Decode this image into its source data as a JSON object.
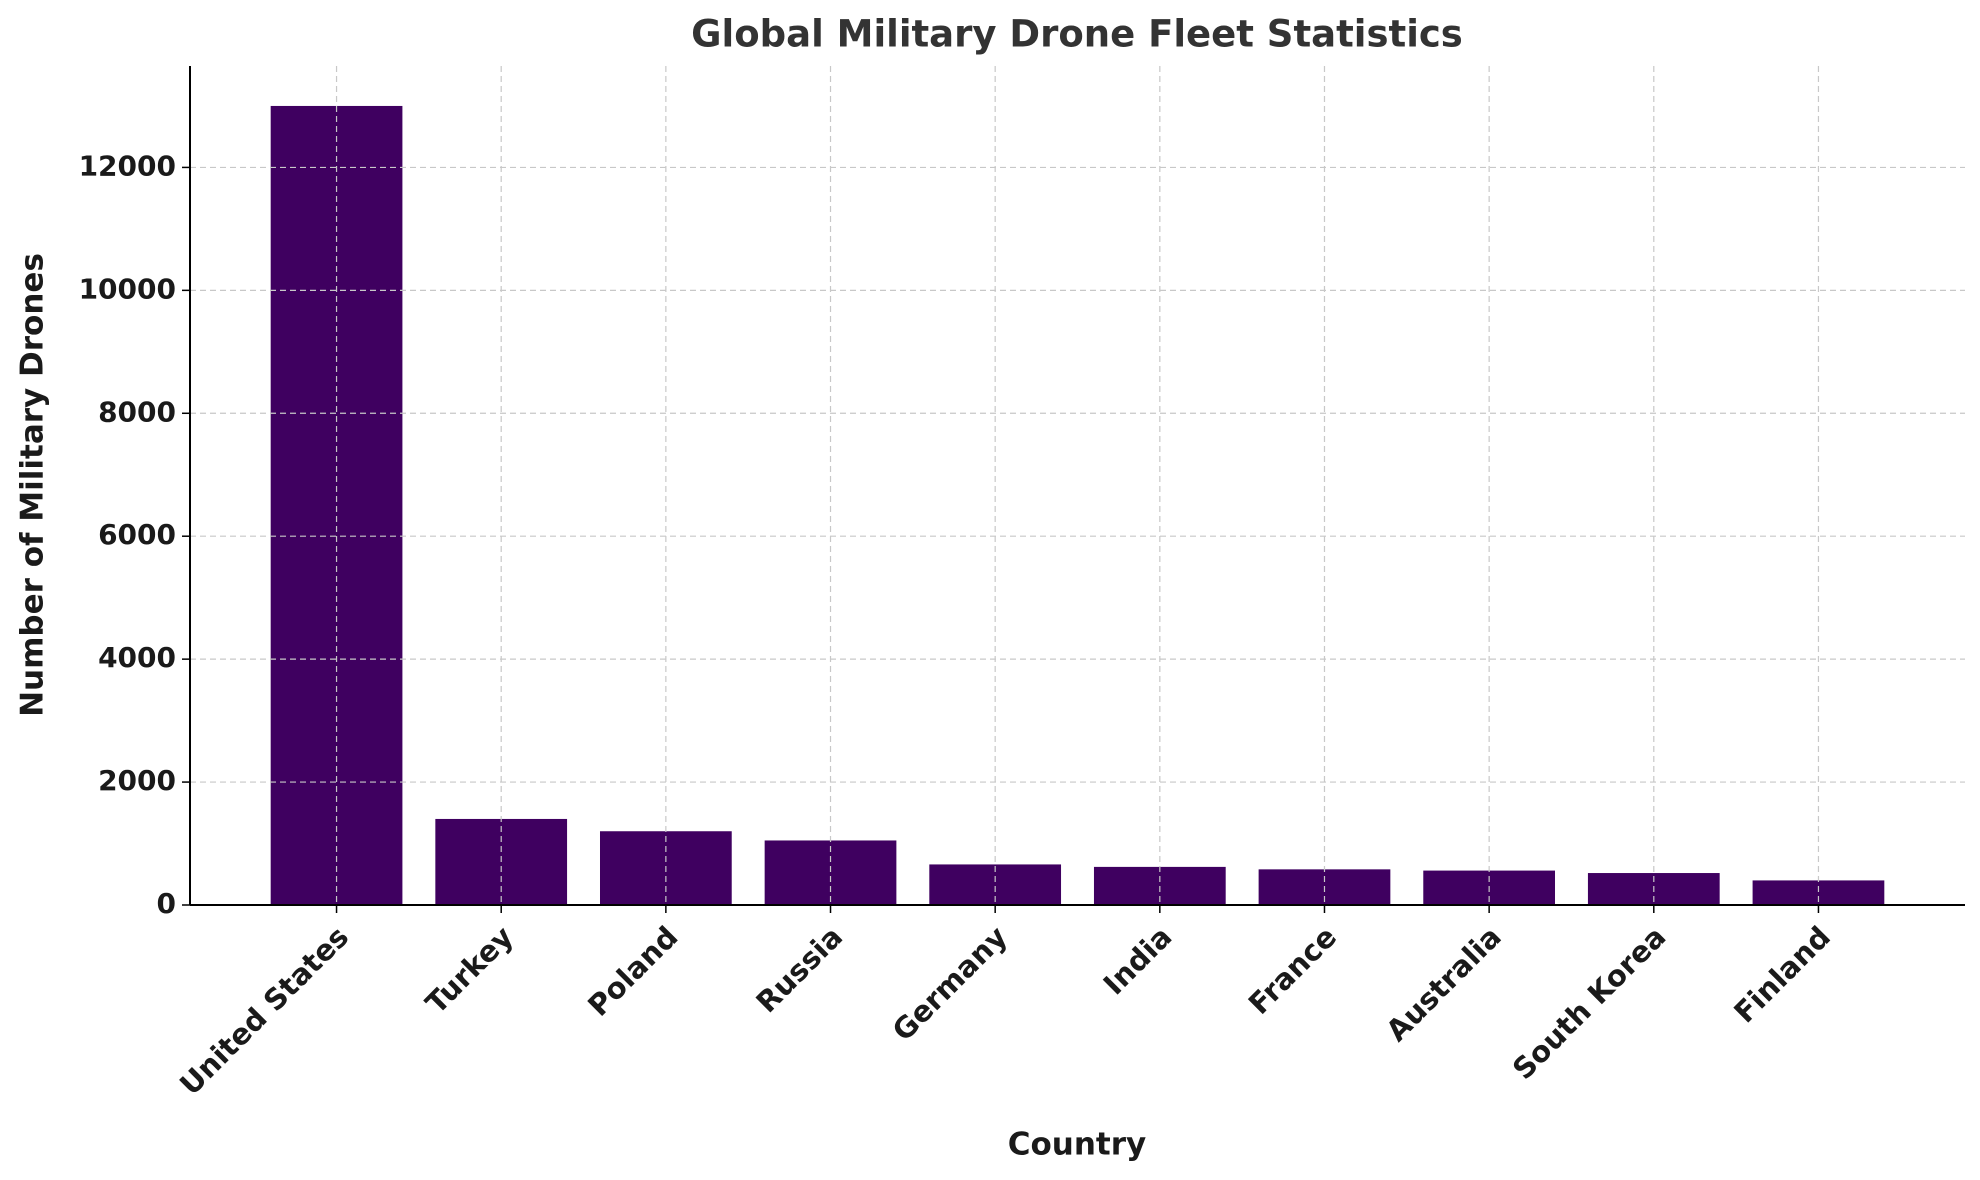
{
  "chart_data": {
    "type": "bar",
    "title": "Global Military Drone Fleet Statistics",
    "x_label": "Country",
    "y_label": "Number of Military Drones",
    "categories": [
      "United States",
      "Turkey",
      "Poland",
      "Russia",
      "Germany",
      "India",
      "France",
      "Australia",
      "South Korea",
      "Finland"
    ],
    "values": [
      13000,
      1400,
      1200,
      1050,
      660,
      620,
      580,
      560,
      520,
      400
    ],
    "color": "#3f0060",
    "ylim": [
      0,
      13650
    ],
    "yticks": [
      0,
      2000,
      4000,
      6000,
      8000,
      10000,
      12000
    ],
    "grid": true
  }
}
